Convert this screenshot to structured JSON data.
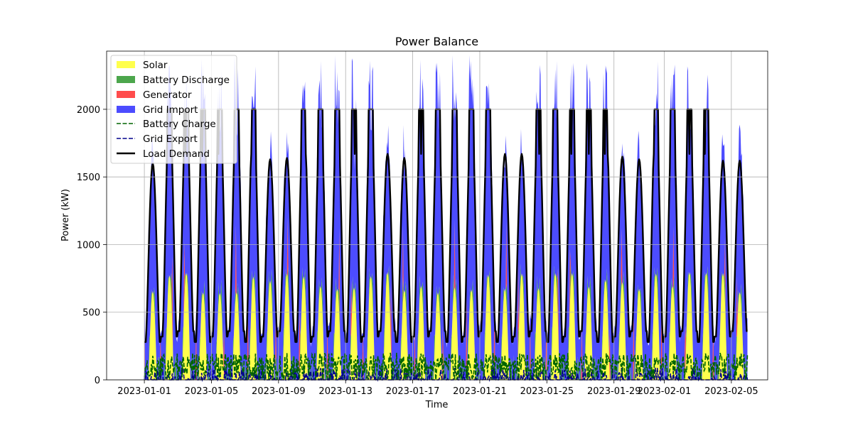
{
  "chart_data": {
    "type": "area",
    "title": "Power Balance",
    "xlabel": "Time",
    "ylabel": "Power (kW)",
    "x_start": "2023-01-01",
    "x_end": "2023-02-05 23:00",
    "xlim": [
      "2022-12-29 18:00",
      "2023-02-07 04:00"
    ],
    "ylim": [
      0,
      2430
    ],
    "x_ticks": [
      "2023-01-01",
      "2023-01-05",
      "2023-01-09",
      "2023-01-13",
      "2023-01-17",
      "2023-01-21",
      "2023-01-25",
      "2023-01-29",
      "2023-02-01",
      "2023-02-05"
    ],
    "y_ticks": [
      0,
      500,
      1000,
      1500,
      2000
    ],
    "grid": true,
    "legend_position": "top-left",
    "stack_order": [
      "Solar",
      "Battery Discharge",
      "Generator",
      "Grid Import"
    ],
    "series": [
      {
        "name": "Solar",
        "kind": "stacked-area",
        "color": "#ffff00",
        "peak_range_kw": [
          640,
          800
        ]
      },
      {
        "name": "Battery Discharge",
        "kind": "stacked-area",
        "color": "#008000",
        "peak_kw": 190
      },
      {
        "name": "Generator",
        "kind": "stacked-area",
        "color": "#ff0000",
        "peak_kw": 550
      },
      {
        "name": "Grid Import",
        "kind": "stacked-area",
        "color": "#0000ff",
        "peak_range_kw": [
          1200,
          1950
        ]
      },
      {
        "name": "Battery Charge",
        "kind": "dashed-line",
        "color": "#006400",
        "range_kw": [
          0,
          200
        ]
      },
      {
        "name": "Grid Export",
        "kind": "dashed-line",
        "color": "#00008b",
        "range_kw": [
          0,
          90
        ]
      },
      {
        "name": "Load Demand",
        "kind": "line",
        "color": "#000000"
      }
    ],
    "load_demand_daily_peaks_kw": [
      1600,
      2000,
      2000,
      2000,
      2000,
      2000,
      2000,
      1630,
      1640,
      2000,
      2000,
      2000,
      2000,
      2000,
      1670,
      1640,
      2000,
      2000,
      2000,
      2000,
      2000,
      1670,
      1670,
      2000,
      2000,
      2000,
      2000,
      2000,
      1650,
      1630,
      2000,
      2000,
      2000,
      2000,
      1620,
      1620
    ],
    "load_demand_night_min_kw": [
      280,
      560
    ]
  }
}
